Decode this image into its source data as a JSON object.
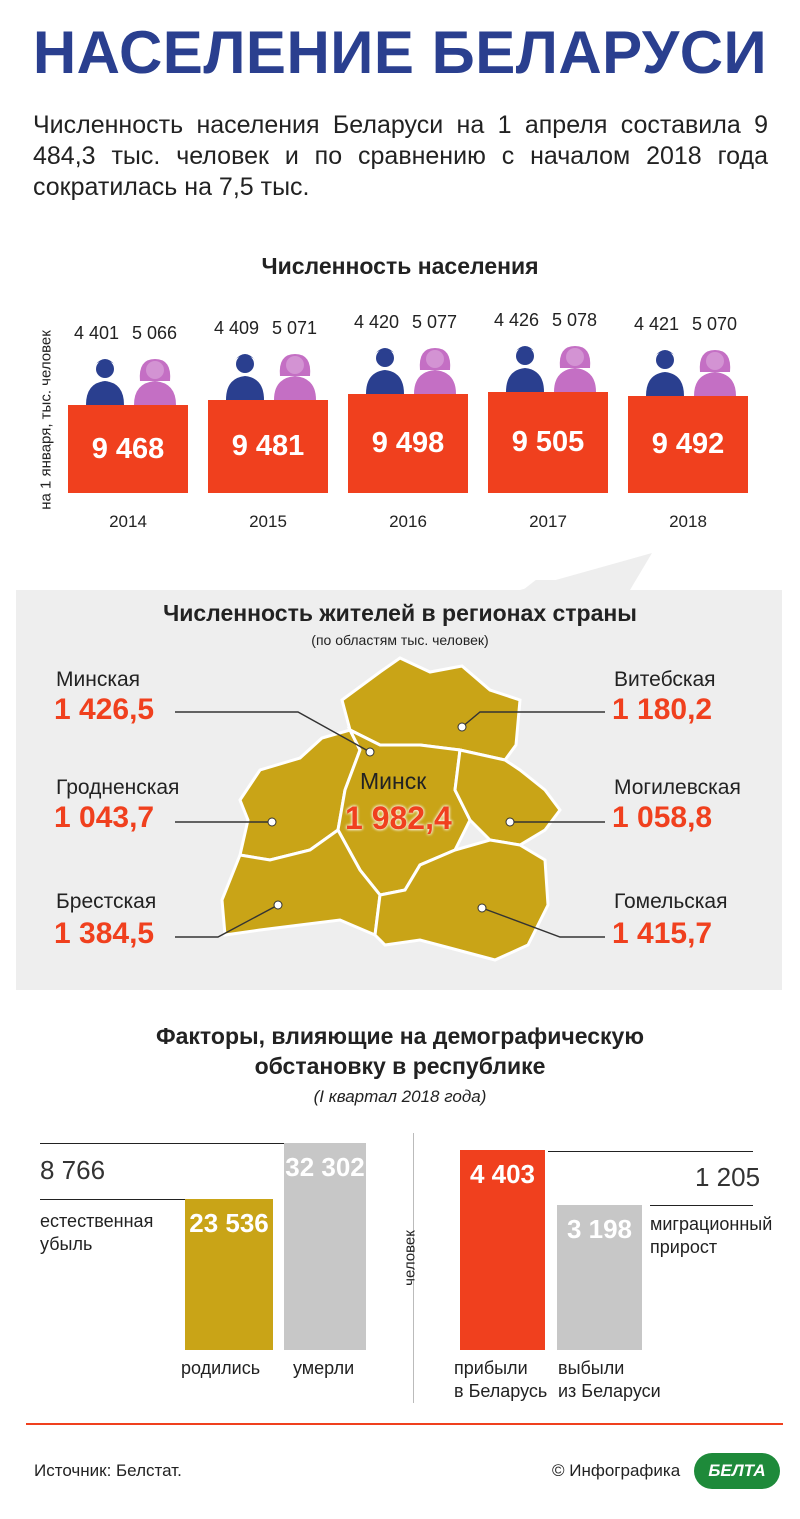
{
  "title": "НАСЕЛЕНИЕ БЕЛАРУСИ",
  "intro": "Численность населения Беларуси на 1 апреля составила 9 484,3 тыс. человек и по сравнению с началом 2018 года сократилась на 7,5 тыс.",
  "population": {
    "heading": "Численность населения",
    "axis_label": "на 1 января, тыс. человек",
    "colors": {
      "bar": "#f0401e",
      "male": "#2a3f8f",
      "female": "#c46fc4"
    }
  },
  "regions": {
    "heading": "Численность жителей в регионах страны",
    "subheading": "(по областям тыс. человек)",
    "items": [
      {
        "name": "Минская",
        "value": "1 426,5"
      },
      {
        "name": "Гродненская",
        "value": "1 043,7"
      },
      {
        "name": "Брестская",
        "value": "1 384,5"
      },
      {
        "name": "Витебская",
        "value": "1 180,2"
      },
      {
        "name": "Могилевская",
        "value": "1 058,8"
      },
      {
        "name": "Гомельская",
        "value": "1 415,7"
      },
      {
        "name": "Минск",
        "value": "1 982,4"
      }
    ],
    "map_color": "#c9a417"
  },
  "factors": {
    "heading_line1": "Факторы, влияющие на демографическую",
    "heading_line2": "обстановку в республике",
    "period": "(I квартал 2018 года)",
    "natural": {
      "diff_value": "8 766",
      "diff_label_1": "естественная",
      "diff_label_2": "убыль",
      "born_label": "родились",
      "died_label": "умерли"
    },
    "migration": {
      "axis_label": "человек",
      "diff_value": "1 205",
      "diff_label_1": "миграционный",
      "diff_label_2": "прирост",
      "arrived_label_1": "прибыли",
      "arrived_label_2": "в Беларусь",
      "left_label_1": "выбыли",
      "left_label_2": "из Беларуси"
    }
  },
  "footer": {
    "source": "Источник: Белстат.",
    "credit": "© Инфографика",
    "logo": "БЕЛТА"
  },
  "chart_data": [
    {
      "type": "bar",
      "title": "Численность населения",
      "ylabel": "на 1 января, тыс. человек",
      "categories": [
        "2014",
        "2015",
        "2016",
        "2017",
        "2018"
      ],
      "values": [
        9468,
        9481,
        9498,
        9505,
        9492
      ],
      "value_labels": [
        "9 468",
        "9 481",
        "9 498",
        "9 505",
        "9 492"
      ],
      "male": [
        "4 401",
        "4 409",
        "4 420",
        "4 426",
        "4 421"
      ],
      "female": [
        "5 066",
        "5 071",
        "5 077",
        "5 078",
        "5 070"
      ],
      "ylim": [
        9400,
        9510
      ]
    },
    {
      "type": "bar",
      "categories": [
        "родились",
        "умерли"
      ],
      "values": [
        23536,
        32302
      ],
      "value_labels": [
        "23 536",
        "32 302"
      ],
      "colors": [
        "#c9a417",
        "#c7c7c7"
      ]
    },
    {
      "type": "bar",
      "ylabel": "человек",
      "categories": [
        "прибыли в Беларусь",
        "выбыли из Беларуси"
      ],
      "values": [
        4403,
        3198
      ],
      "value_labels": [
        "4 403",
        "3 198"
      ],
      "colors": [
        "#f0401e",
        "#c7c7c7"
      ]
    }
  ]
}
